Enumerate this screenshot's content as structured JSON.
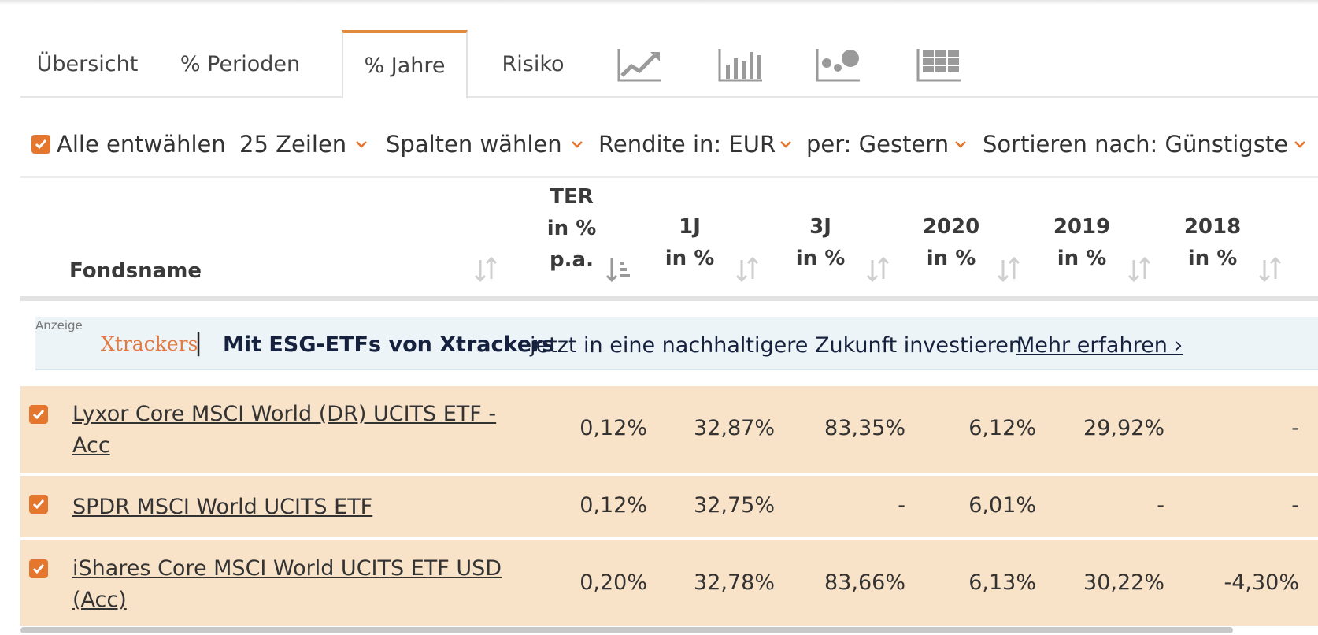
{
  "tabs": [
    {
      "label": "Übersicht"
    },
    {
      "label": "% Perioden"
    },
    {
      "label": "% Jahre"
    },
    {
      "label": "Risiko"
    }
  ],
  "tab_icons": [
    "line-chart-icon",
    "bar-chart-icon",
    "scatter-chart-icon",
    "grid-table-icon"
  ],
  "toolbar": {
    "deselect_label": "Alle entwählen",
    "rows_label": "25 Zeilen",
    "columns_label": "Spalten wählen",
    "currency_label": "Rendite in: EUR",
    "date_label": "per: Gestern",
    "sort_label": "Sortieren nach: Günstigste"
  },
  "header": {
    "fund": "Fondsname",
    "ter": [
      "TER",
      "in %",
      "p.a."
    ],
    "c1j": [
      "1J",
      "in %"
    ],
    "c3j": [
      "3J",
      "in %"
    ],
    "c2020": [
      "2020",
      "in %"
    ],
    "c2019": [
      "2019",
      "in %"
    ],
    "c2018": [
      "2018",
      "in %"
    ]
  },
  "ad": {
    "tag": "Anzeige",
    "logo": "Xtrackers",
    "separator": "|",
    "headline": "Mit ESG-ETFs von Xtrackers",
    "text": "jetzt in eine nachhaltigere Zukunft investieren.",
    "link": "Mehr erfahren ›"
  },
  "rows": [
    {
      "name": [
        "Lyxor Core MSCI World (DR) UCITS ETF -",
        "Acc"
      ],
      "ter": "0,12%",
      "r1j": "32,87%",
      "r3j": "83,35%",
      "r2020": "6,12%",
      "r2019": "29,92%",
      "r2018": "-"
    },
    {
      "name": [
        "SPDR MSCI World UCITS ETF"
      ],
      "ter": "0,12%",
      "r1j": "32,75%",
      "r3j": "-",
      "r2020": "6,01%",
      "r2019": "-",
      "r2018": "-"
    },
    {
      "name": [
        "iShares Core MSCI World UCITS ETF USD",
        "(Acc)"
      ],
      "ter": "0,20%",
      "r1j": "32,78%",
      "r3j": "83,66%",
      "r2020": "6,13%",
      "r2019": "30,22%",
      "r2018": "-4,30%"
    }
  ],
  "colors": {
    "accent": "#e4762d",
    "row_bg": "#f9e3c8",
    "ad_bg": "#edf4f8",
    "ad_logo": "#e07a42"
  }
}
